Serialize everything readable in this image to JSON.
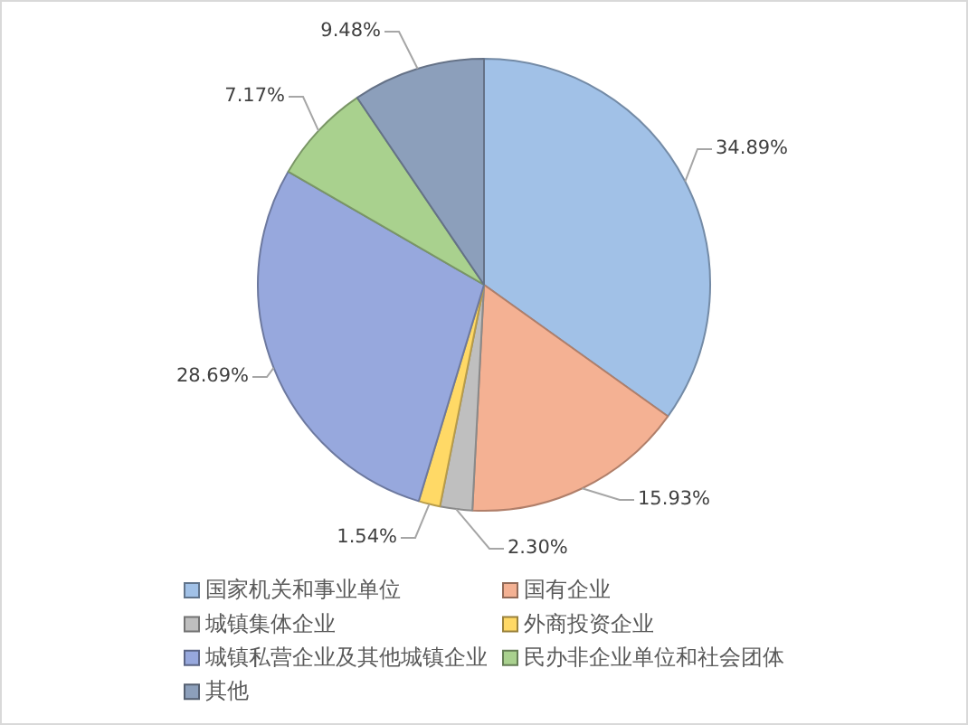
{
  "chart_data": {
    "type": "pie",
    "categories": [
      "国家机关和事业单位",
      "国有企业",
      "城镇集体企业",
      "外商投资企业",
      "城镇私营企业及其他城镇企业",
      "民办非企业单位和社会团体",
      "其他"
    ],
    "values": [
      34.89,
      15.93,
      2.3,
      1.54,
      28.69,
      7.17,
      9.48
    ],
    "colors": [
      "#a1c1e7",
      "#f4b193",
      "#bfbfbf",
      "#ffd966",
      "#97a8dd",
      "#a9d18e",
      "#8c9fbb"
    ],
    "value_labels": [
      "34.89%",
      "15.93%",
      "2.30%",
      "1.54%",
      "28.69%",
      "7.17%",
      "9.48%"
    ],
    "legend": "bottom"
  }
}
